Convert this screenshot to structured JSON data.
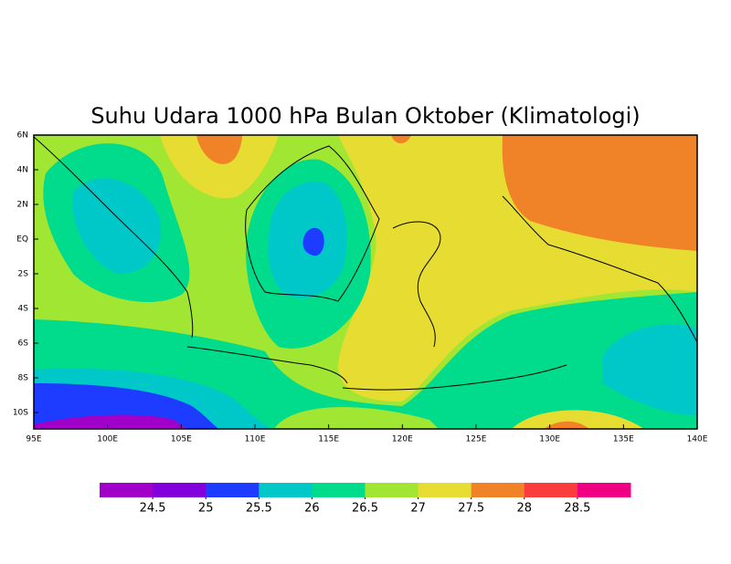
{
  "title": "Suhu Udara 1000 hPa Bulan Oktober (Klimatologi)",
  "lon_labels": [
    "95E",
    "100E",
    "105E",
    "110E",
    "115E",
    "120E",
    "125E",
    "130E",
    "135E",
    "140E"
  ],
  "lat_labels": [
    "6N",
    "4N",
    "2N",
    "EQ",
    "2S",
    "4S",
    "6S",
    "8S",
    "10S"
  ],
  "colorbar": {
    "colors": [
      "#a000c8",
      "#8200dc",
      "#1e3cff",
      "#00c8c8",
      "#00dc8c",
      "#a0e632",
      "#e6dc32",
      "#f08228",
      "#fa3c3c",
      "#f00082"
    ],
    "levels": [
      24.5,
      25,
      25.5,
      26,
      26.5,
      27,
      27.5,
      28,
      28.5
    ]
  }
}
